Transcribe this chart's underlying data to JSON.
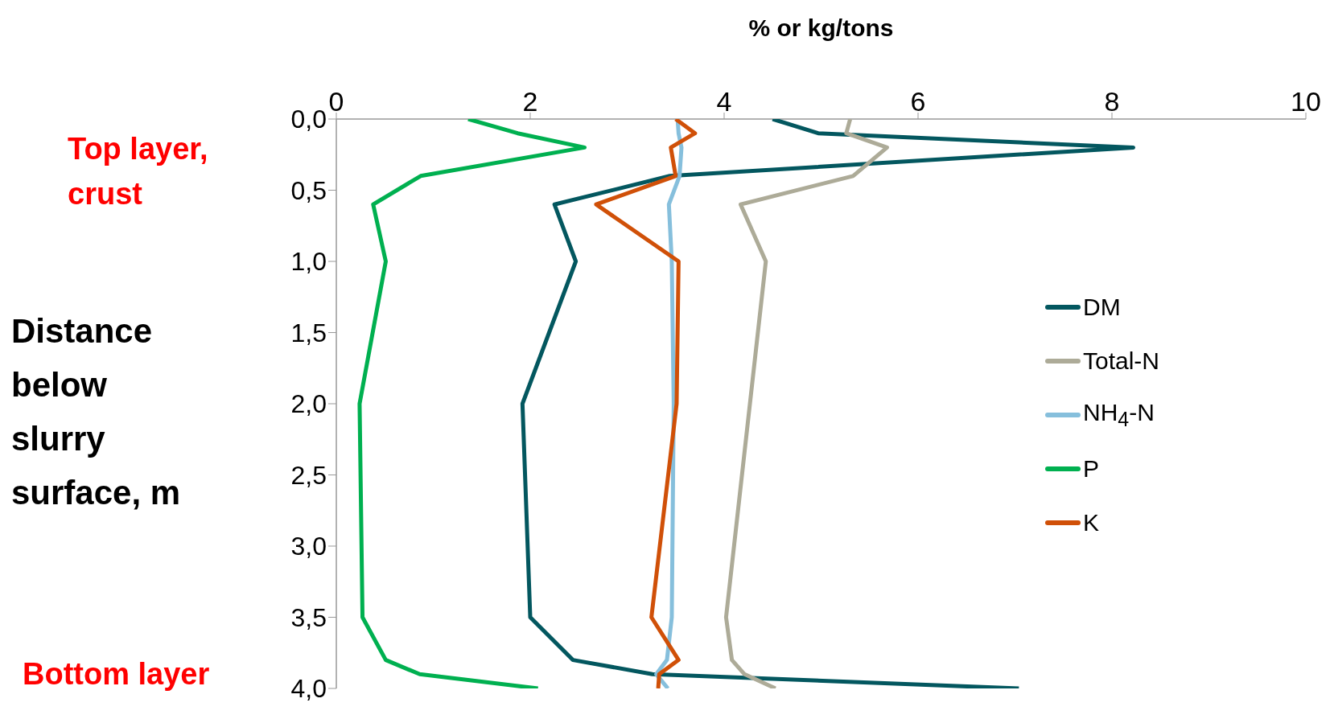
{
  "chart_data": {
    "type": "line",
    "xlabel": "% or kg/tons",
    "ylabel": "Distance below slurry surface, m",
    "xlim": [
      0,
      10
    ],
    "xticks": [
      0,
      2,
      4,
      6,
      8,
      10
    ],
    "ylim": [
      4,
      0
    ],
    "yticks": [
      {
        "value": 0,
        "label": "0,0"
      },
      {
        "value": 0.5,
        "label": "0,5"
      },
      {
        "value": 1,
        "label": "1,0"
      },
      {
        "value": 1.5,
        "label": "1,5"
      },
      {
        "value": 2,
        "label": "2,0"
      },
      {
        "value": 2.5,
        "label": "2,5"
      },
      {
        "value": 3,
        "label": "3,0"
      },
      {
        "value": 3.5,
        "label": "3,5"
      },
      {
        "value": 4,
        "label": "4,0"
      }
    ],
    "grid": false,
    "legend": "right",
    "marker": "none",
    "line_style": "solid",
    "annotations": [
      "Top layer, crust",
      "Bottom layer"
    ],
    "series": [
      {
        "name": "DM",
        "color": "#03575f",
        "x": [
          4.5,
          4.97,
          8.22,
          3.44,
          2.25,
          2.47,
          1.92,
          2.0,
          2.44,
          3.26,
          7.04
        ],
        "values": [
          0,
          0.1,
          0.2,
          0.4,
          0.6,
          1.0,
          2.0,
          3.5,
          3.8,
          3.9,
          4.0
        ]
      },
      {
        "name": "Total-N",
        "color": "#adab98",
        "x": [
          5.3,
          5.26,
          5.68,
          5.33,
          4.17,
          4.43,
          4.02,
          4.08,
          4.21,
          4.53
        ],
        "values": [
          0,
          0.1,
          0.2,
          0.4,
          0.6,
          1.0,
          3.5,
          3.8,
          3.9,
          4.0
        ]
      },
      {
        "name": "NH$_{4}$-N",
        "color": "#86bfdc",
        "x": [
          3.52,
          3.53,
          3.56,
          3.54,
          3.43,
          3.46,
          3.48,
          3.46,
          3.41,
          3.3,
          3.42
        ],
        "values": [
          0,
          0.1,
          0.2,
          0.4,
          0.6,
          1.0,
          2.0,
          3.5,
          3.8,
          3.9,
          4.0
        ]
      },
      {
        "name": "P",
        "color": "#00b050",
        "x": [
          1.36,
          1.87,
          2.56,
          0.87,
          0.38,
          0.51,
          0.24,
          0.27,
          0.51,
          0.86,
          2.08
        ],
        "values": [
          0,
          0.1,
          0.2,
          0.4,
          0.6,
          1.0,
          2.0,
          3.5,
          3.8,
          3.9,
          4.0
        ]
      },
      {
        "name": "K",
        "color": "#d05008",
        "x": [
          3.5,
          3.7,
          3.45,
          3.5,
          2.68,
          3.53,
          3.51,
          3.25,
          3.53,
          3.33,
          3.32
        ],
        "values": [
          0,
          0.1,
          0.2,
          0.4,
          0.6,
          1.0,
          2.0,
          3.5,
          3.8,
          3.9,
          4.0
        ]
      }
    ]
  }
}
